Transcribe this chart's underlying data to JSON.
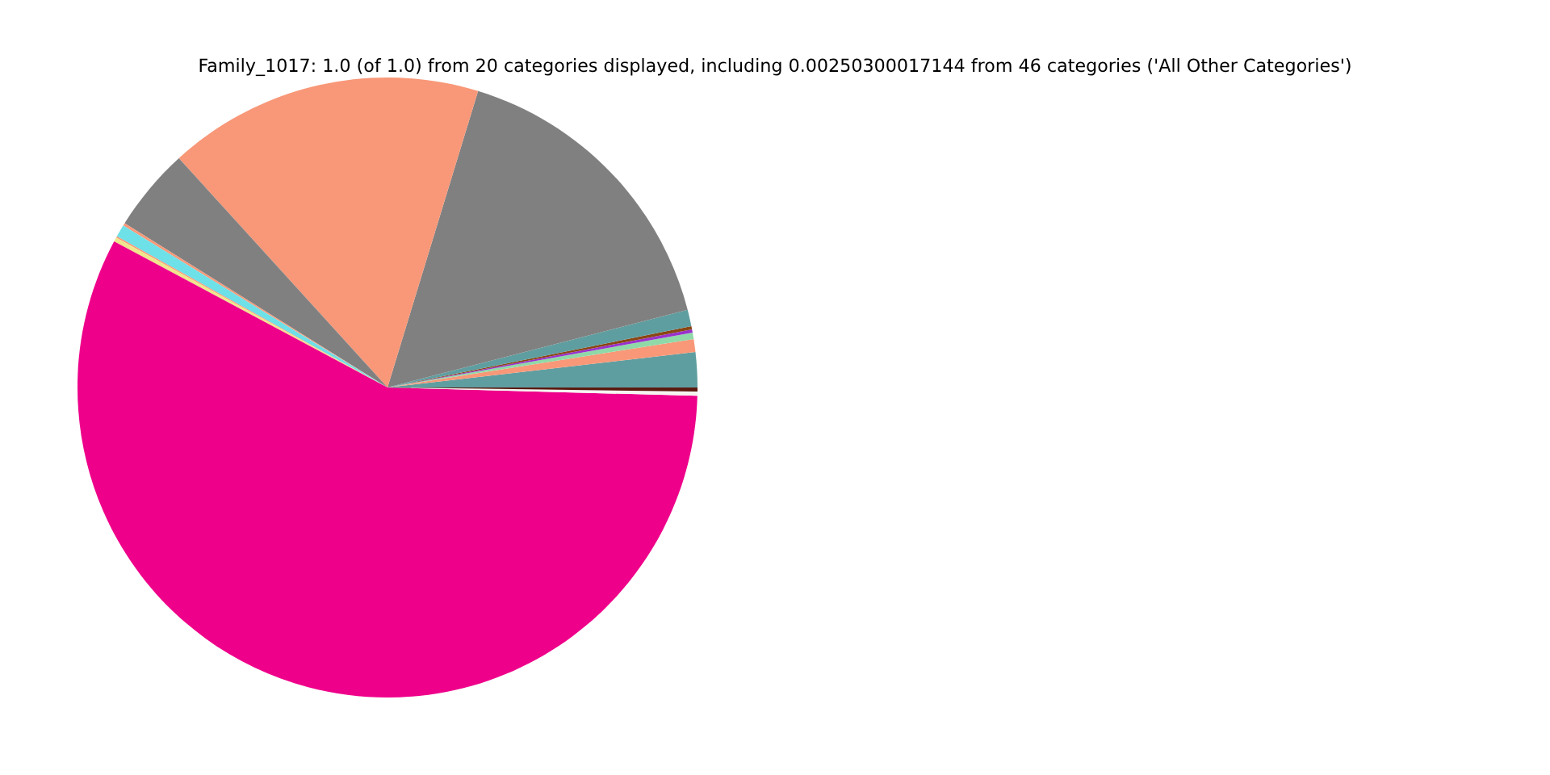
{
  "chart_data": {
    "type": "pie",
    "title": "Family_1017: 1.0 (of 1.0) from 20 categories displayed, including 0.00250300017144 from 46 categories ('All Other Categories')",
    "categories": [
      null,
      null,
      null,
      null,
      null,
      null,
      null,
      null,
      null,
      null,
      null,
      null,
      null,
      null,
      null,
      null
    ],
    "values": [
      1.83,
      0.67,
      0.33,
      0.17,
      0.17,
      0.86,
      16.25,
      16.47,
      4.36,
      0.14,
      0.64,
      0.08,
      0.22,
      57.38,
      0.22,
      0.21
    ],
    "colors": [
      "#5f9ea0",
      "#f89878",
      "#8fd9a8",
      "#9932cc",
      "#8b4513",
      "#5f9ea0",
      "#808080",
      "#f89878",
      "#808080",
      "#f89878",
      "#6ee0e8",
      "#f89878",
      "#f0e68c",
      "#ee008a",
      "#f5f5f0",
      "#5a1a10"
    ]
  }
}
